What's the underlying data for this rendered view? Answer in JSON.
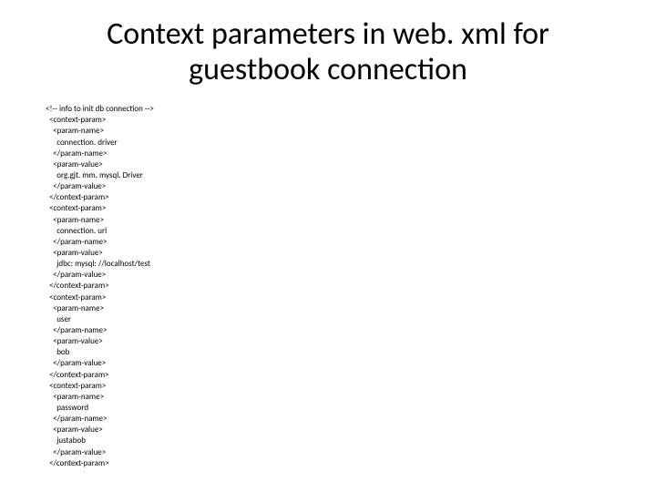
{
  "title": "Context parameters in web. xml for guestbook connection",
  "code": {
    "lines": [
      "<!-- info to init db connection -->",
      "  <context-param>",
      "    <param-name>",
      "      connection. driver",
      "    </param-name>",
      "    <param-value>",
      "      org.gjt. mm. mysql. Driver",
      "    </param-value>",
      "  </context-param>",
      "  <context-param>",
      "    <param-name>",
      "      connection. url",
      "    </param-name>",
      "    <param-value>",
      "      jdbc: mysql: //localhost/test",
      "    </param-value>",
      "  </context-param>",
      "  <context-param>",
      "    <param-name>",
      "      user",
      "    </param-name>",
      "    <param-value>",
      "      bob",
      "    </param-value>",
      "  </context-param>",
      "  <context-param>",
      "    <param-name>",
      "      password",
      "    </param-name>",
      "    <param-value>",
      "      justabob",
      "    </param-value>",
      "  </context-param>"
    ]
  },
  "colors": {
    "background": "#ffffff",
    "text": "#000000"
  },
  "typography": {
    "title_fontsize": 34,
    "code_fontsize": 9,
    "font_family": "Calibri"
  }
}
